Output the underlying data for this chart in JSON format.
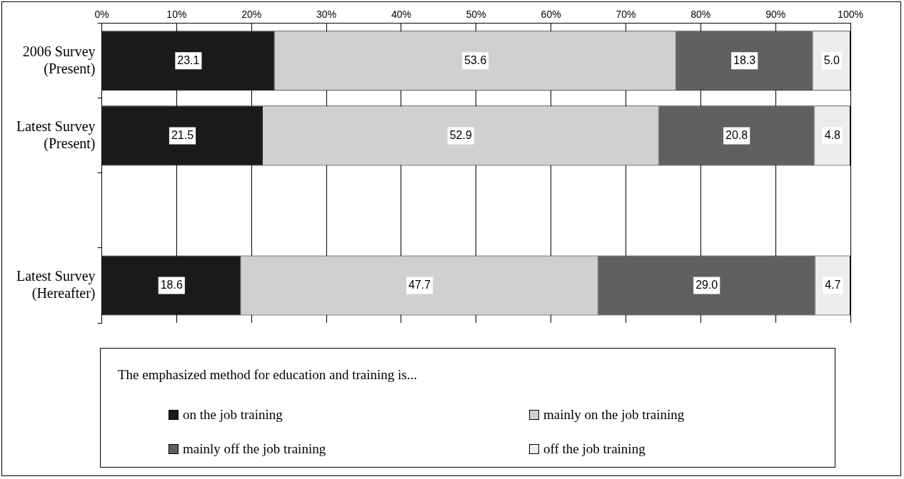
{
  "chart_data": {
    "type": "bar",
    "orientation": "horizontal",
    "stacked": true,
    "grid": "x",
    "legend": "bottom",
    "legend_title": "The emphasized method for education and training is...",
    "categories": [
      "2006 Survey\n(Present)",
      "Latest Survey\n(Present)",
      null,
      "Latest Survey\n(Hereafter)"
    ],
    "xlim": [
      0,
      100
    ],
    "xticks": [
      {
        "value": 0,
        "label": "0%"
      },
      {
        "value": 10,
        "label": "10%"
      },
      {
        "value": 20,
        "label": "20%"
      },
      {
        "value": 30,
        "label": "30%"
      },
      {
        "value": 40,
        "label": "40%"
      },
      {
        "value": 50,
        "label": "50%"
      },
      {
        "value": 60,
        "label": "60%"
      },
      {
        "value": 70,
        "label": "70%"
      },
      {
        "value": 80,
        "label": "80%"
      },
      {
        "value": 90,
        "label": "90%"
      },
      {
        "value": 100,
        "label": "100%"
      }
    ],
    "series": [
      {
        "name": "on the job training",
        "color": "#1a1a1a",
        "values": [
          23.1,
          21.5,
          null,
          18.6
        ],
        "value_labels": [
          "23.1",
          "21.5",
          null,
          "18.6"
        ]
      },
      {
        "name": "mainly on the job training",
        "color": "#d0d0d0",
        "values": [
          53.6,
          52.9,
          null,
          47.7
        ],
        "value_labels": [
          "53.6",
          "52.9",
          null,
          "47.7"
        ]
      },
      {
        "name": "mainly off the job training",
        "color": "#606060",
        "values": [
          18.3,
          20.8,
          null,
          29.0
        ],
        "value_labels": [
          "18.3",
          "20.8",
          null,
          "29.0"
        ]
      },
      {
        "name": "off the job training",
        "color": "#ececec",
        "values": [
          5.0,
          4.8,
          null,
          4.7
        ],
        "value_labels": [
          "5.0",
          "4.8",
          null,
          "4.7"
        ]
      }
    ]
  }
}
